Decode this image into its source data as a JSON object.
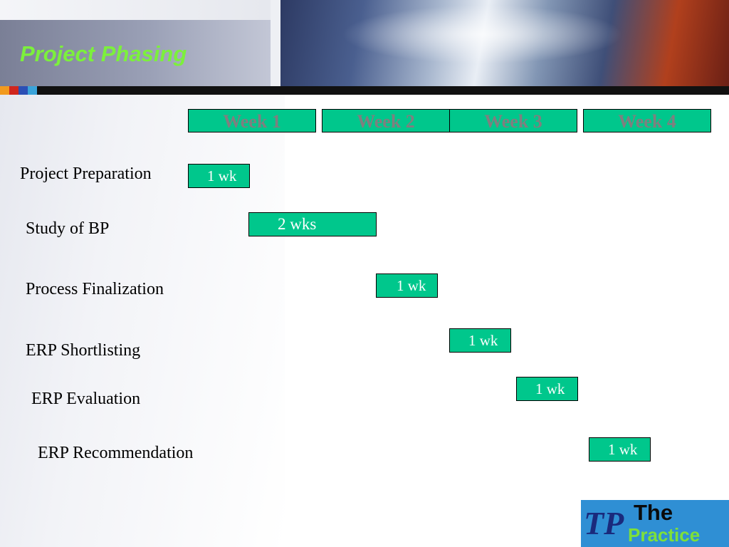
{
  "title": "Project Phasing",
  "weeks": [
    "Week 1",
    "Week 2",
    "Week 3",
    "Week 4"
  ],
  "tasks": [
    {
      "name": "Project Preparation",
      "duration_label": "1 wk",
      "start_week": 1,
      "weeks": 1
    },
    {
      "name": "Study of BP",
      "duration_label": "2 wks",
      "start_week": 2,
      "weeks": 2
    },
    {
      "name": "Process Finalization",
      "duration_label": "1 wk",
      "start_week": 4,
      "weeks": 1
    },
    {
      "name": "ERP Shortlisting",
      "duration_label": "1 wk",
      "start_week": 5,
      "weeks": 1
    },
    {
      "name": "ERP Evaluation",
      "duration_label": "1 wk",
      "start_week": 6,
      "weeks": 1
    },
    {
      "name": "ERP Recommendation",
      "duration_label": "1 wk",
      "start_week": 7,
      "weeks": 1
    }
  ],
  "logo": {
    "text_top": "The",
    "text_bottom": "Practice",
    "mark": "TP"
  },
  "colors": {
    "bar": "#00c78c",
    "title": "#7cf03c",
    "week_text": "#7f7f7f"
  }
}
